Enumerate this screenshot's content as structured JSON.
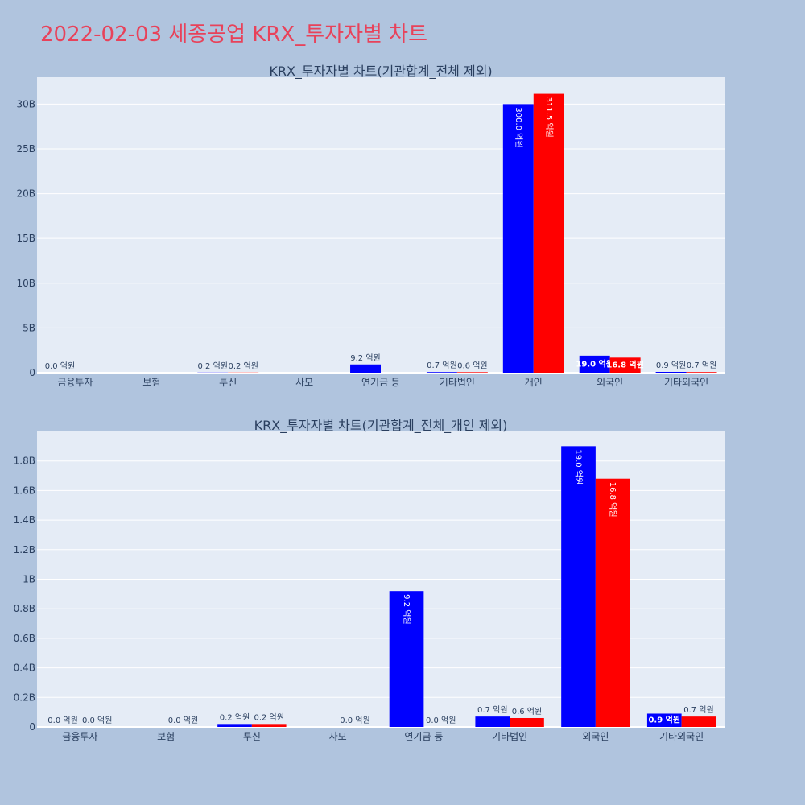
{
  "page": {
    "title": "2022-02-03 세종공업 KRX_투자자별 차트"
  },
  "colors": {
    "background": "#b0c4de",
    "plot_bg": "#e5ecf6",
    "title": "#e8425a",
    "text": "#2a3f5f",
    "series1": "#0000ff",
    "series2": "#ff0000"
  },
  "chart_data": [
    {
      "type": "bar",
      "title": "KRX_투자자별 차트(기관합계_전체 제외)",
      "categories": [
        "금융투자",
        "보험",
        "투신",
        "사모",
        "연기금 등",
        "기타법인",
        "개인",
        "외국인",
        "기타외국인"
      ],
      "series": [
        {
          "values": [
            0,
            null,
            20000000,
            null,
            920000000,
            70000000,
            30000000000,
            1900000000,
            90000000
          ],
          "labels": [
            "0.0 억원",
            "",
            "0.2 억원",
            "",
            "9.2 억원",
            "0.7 억원",
            "300.0 억원",
            "19.0 억원",
            "0.9 억원"
          ]
        },
        {
          "values": [
            null,
            null,
            20000000,
            null,
            null,
            60000000,
            31150000000,
            1680000000,
            70000000
          ],
          "labels": [
            "",
            "",
            "0.2 억원",
            "",
            "",
            "0.6 억원",
            "311.5 억원",
            "16.8 억원",
            "0.7 억원"
          ]
        }
      ],
      "yticks": [
        0,
        5000000000,
        10000000000,
        15000000000,
        20000000000,
        25000000000,
        30000000000
      ],
      "ytick_labels": [
        "0",
        "5B",
        "10B",
        "15B",
        "20B",
        "25B",
        "30B"
      ],
      "ylim": [
        0,
        33000000000
      ],
      "grid": true
    },
    {
      "type": "bar",
      "title": "KRX_투자자별 차트(기관합계_전체_개인 제외)",
      "categories": [
        "금융투자",
        "보험",
        "투신",
        "사모",
        "연기금 등",
        "기타법인",
        "외국인",
        "기타외국인"
      ],
      "series": [
        {
          "values": [
            0,
            null,
            20000000,
            null,
            920000000,
            70000000,
            1900000000,
            90000000
          ],
          "labels": [
            "0.0 억원",
            "",
            "0.2 억원",
            "",
            "9.2 억원",
            "0.7 억원",
            "19.0 억원",
            "0.9 억원"
          ]
        },
        {
          "values": [
            0,
            0,
            20000000,
            0,
            0,
            60000000,
            1680000000,
            70000000
          ],
          "labels": [
            "0.0 억원",
            "0.0 억원",
            "0.2 억원",
            "0.0 억원",
            "0.0 억원",
            "0.6 억원",
            "16.8 억원",
            "0.7 억원"
          ]
        }
      ],
      "yticks": [
        0,
        200000000,
        400000000,
        600000000,
        800000000,
        1000000000,
        1200000000,
        1400000000,
        1600000000,
        1800000000
      ],
      "ytick_labels": [
        "0",
        "0.2B",
        "0.4B",
        "0.6B",
        "0.8B",
        "1B",
        "1.2B",
        "1.4B",
        "1.6B",
        "1.8B"
      ],
      "ylim": [
        0,
        2000000000
      ],
      "grid": true
    }
  ]
}
